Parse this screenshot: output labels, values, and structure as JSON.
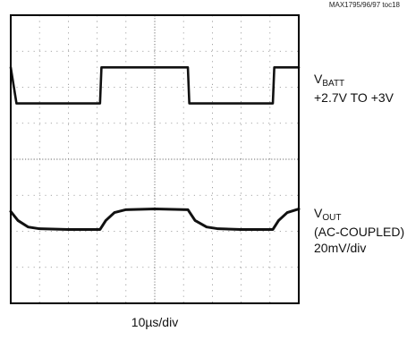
{
  "doc_id": "MAX1795/96/97 toc18",
  "chart_data": {
    "type": "line",
    "grid": true,
    "grid_divisions": {
      "x": 10,
      "y": 8
    },
    "x_label": "10µs/div",
    "x_range_div": [
      0,
      10
    ],
    "y_range_div": [
      0,
      8
    ],
    "series": [
      {
        "name": "VBATT",
        "label_main": "V",
        "label_sub": "BATT",
        "label_line2": "+2.7V TO +3V",
        "low_level_div": 5.55,
        "high_level_div": 6.55,
        "points": [
          [
            0.0,
            6.55
          ],
          [
            0.2,
            5.55
          ],
          [
            3.1,
            5.55
          ],
          [
            3.15,
            6.55
          ],
          [
            6.15,
            6.55
          ],
          [
            6.2,
            5.55
          ],
          [
            9.1,
            5.55
          ],
          [
            9.15,
            6.55
          ],
          [
            10.0,
            6.55
          ]
        ]
      },
      {
        "name": "VOUT",
        "label_main": "V",
        "label_sub": "OUT",
        "label_line2": "(AC-COUPLED)",
        "label_line3": "20mV/div",
        "points": [
          [
            0.0,
            2.55
          ],
          [
            0.25,
            2.3
          ],
          [
            0.6,
            2.12
          ],
          [
            1.0,
            2.07
          ],
          [
            2.0,
            2.05
          ],
          [
            3.1,
            2.05
          ],
          [
            3.3,
            2.3
          ],
          [
            3.6,
            2.52
          ],
          [
            4.0,
            2.6
          ],
          [
            5.0,
            2.62
          ],
          [
            6.15,
            2.6
          ],
          [
            6.4,
            2.3
          ],
          [
            6.8,
            2.12
          ],
          [
            7.2,
            2.07
          ],
          [
            8.0,
            2.05
          ],
          [
            9.1,
            2.05
          ],
          [
            9.3,
            2.3
          ],
          [
            9.6,
            2.52
          ],
          [
            10.0,
            2.62
          ]
        ]
      }
    ]
  }
}
